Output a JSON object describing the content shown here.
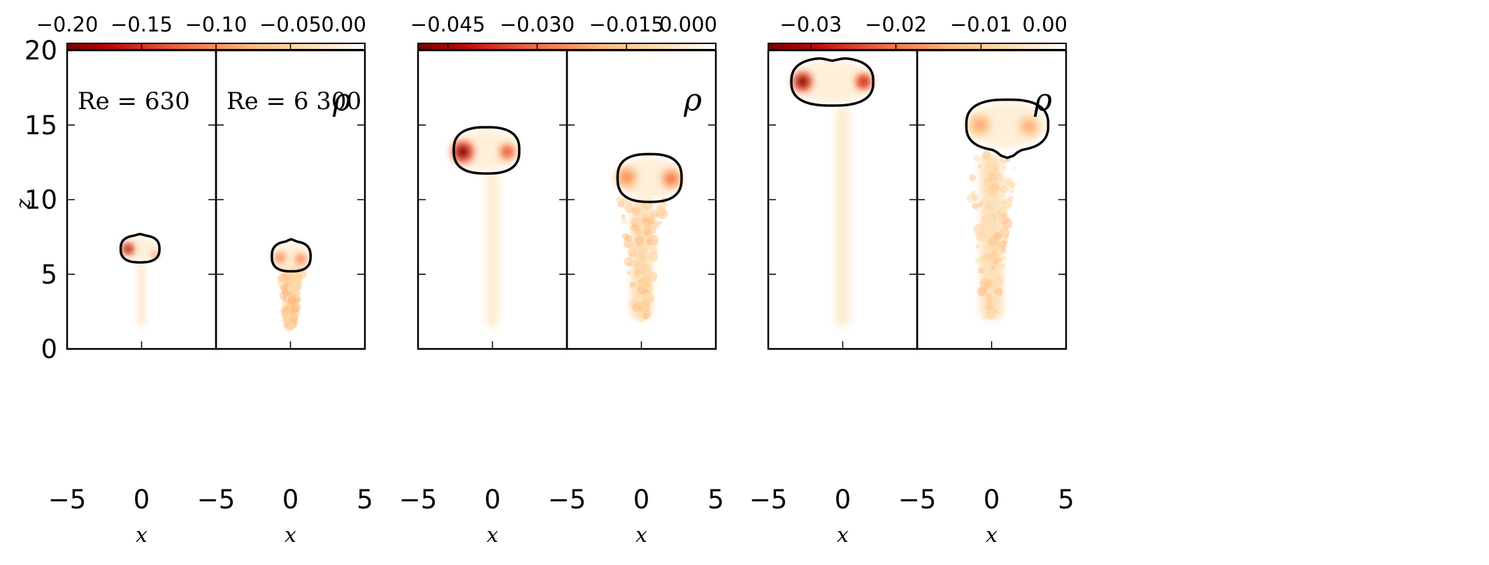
{
  "colormap": {
    "name": "OrRd_r",
    "stops": [
      "#7f0000",
      "#b30000",
      "#d7301f",
      "#ef6548",
      "#fc8d59",
      "#fdbb84",
      "#fdd49e",
      "#fee8c8",
      "#ffffff"
    ]
  },
  "chart_data": [
    {
      "type": "heatmap",
      "group": "t1",
      "variable": "ρ",
      "colorbar": {
        "ticks": [
          "−0.20",
          "−0.15",
          "−0.10",
          "−0.05",
          "0.00"
        ],
        "range": [
          -0.2,
          0.0
        ]
      },
      "panels": [
        {
          "label": "Re = 630",
          "xlabel": "x",
          "ylabel": "z",
          "xlim": [
            -5,
            5
          ],
          "ylim": [
            0,
            20
          ],
          "xticks": [
            "−5",
            "0",
            ""
          ],
          "yticks": [
            "0",
            "5",
            "10",
            "15",
            "20"
          ],
          "contour": {
            "center": [
              -0.1,
              6.7
            ],
            "half_width": 1.3,
            "half_height": 0.9,
            "top_bump": 0.1,
            "bottom_dip": 0.0
          },
          "cores": [
            {
              "x": -0.9,
              "z": 6.7,
              "r": 0.28,
              "value": -0.2
            },
            {
              "x": 0.9,
              "z": 6.3,
              "r": 0.18,
              "value": -0.12
            }
          ],
          "wake": {
            "x": 0.0,
            "z_from": 1.5,
            "z_to": 5.7,
            "width": 0.45,
            "value": -0.04
          },
          "turbulent": false
        },
        {
          "label": "Re = 6 300",
          "symbol": "ρ",
          "xlabel": "x",
          "xlim": [
            -5,
            5
          ],
          "ylim": [
            0,
            20
          ],
          "xticks": [
            "−5",
            "0",
            "5"
          ],
          "contour": {
            "center": [
              0.05,
              6.2
            ],
            "half_width": 1.3,
            "half_height": 1.0,
            "top_bump": 0.15,
            "bottom_dip": 0.0
          },
          "cores": [
            {
              "x": -0.7,
              "z": 6.1,
              "r": 0.28,
              "value": -0.12
            },
            {
              "x": 0.7,
              "z": 6.0,
              "r": 0.28,
              "value": -0.12
            }
          ],
          "wake": {
            "x": 0.0,
            "z_from": 1.5,
            "z_to": 5.5,
            "width": 0.7,
            "value": -0.05
          },
          "turbulent": true
        }
      ]
    },
    {
      "type": "heatmap",
      "group": "t2",
      "variable": "ρ",
      "colorbar": {
        "ticks": [
          "−0.045",
          "−0.030",
          "−0.015",
          "0.000"
        ],
        "range": [
          -0.05,
          0.0
        ]
      },
      "panels": [
        {
          "label": "",
          "xlabel": "x",
          "xlim": [
            -5,
            5
          ],
          "ylim": [
            0,
            20
          ],
          "xticks": [
            "−5",
            "0",
            ""
          ],
          "contour": {
            "center": [
              -0.4,
              13.3
            ],
            "half_width": 2.2,
            "half_height": 1.55,
            "top_bump": 0.0,
            "bottom_dip": 0.0
          },
          "cores": [
            {
              "x": -2.0,
              "z": 13.2,
              "r": 0.5,
              "value": -0.05
            },
            {
              "x": 1.0,
              "z": 13.2,
              "r": 0.38,
              "value": -0.035
            }
          ],
          "wake": {
            "x": 0.0,
            "z_from": 1.5,
            "z_to": 11.8,
            "width": 0.9,
            "value": -0.007
          },
          "turbulent": false
        },
        {
          "label": "",
          "symbol": "ρ",
          "xlabel": "x",
          "xlim": [
            -5,
            5
          ],
          "ylim": [
            0,
            20
          ],
          "xticks": [
            "−5",
            "0",
            "5"
          ],
          "contour": {
            "center": [
              0.55,
              11.45
            ],
            "half_width": 2.15,
            "half_height": 1.6,
            "top_bump": 0.0,
            "bottom_dip": 0.0
          },
          "cores": [
            {
              "x": -1.0,
              "z": 11.5,
              "r": 0.5,
              "value": -0.025
            },
            {
              "x": 2.0,
              "z": 11.4,
              "r": 0.45,
              "value": -0.03
            }
          ],
          "wake": {
            "x": 0.0,
            "z_from": 2.0,
            "z_to": 10.0,
            "width": 1.4,
            "value": -0.012
          },
          "turbulent": true
        }
      ]
    },
    {
      "type": "heatmap",
      "group": "t3",
      "variable": "ρ",
      "colorbar": {
        "ticks": [
          "−0.03",
          "−0.02",
          "−0.01",
          "0.00"
        ],
        "range": [
          -0.035,
          0.0
        ]
      },
      "panels": [
        {
          "label": "",
          "xlabel": "x",
          "xlim": [
            -5,
            5
          ],
          "ylim": [
            0,
            20
          ],
          "xticks": [
            "−5",
            "0",
            ""
          ],
          "contour": {
            "center": [
              -0.7,
              17.9
            ],
            "half_width": 2.75,
            "half_height": 1.6,
            "top_bump": -0.2,
            "bottom_dip": 0.0
          },
          "cores": [
            {
              "x": -2.7,
              "z": 17.9,
              "r": 0.45,
              "value": -0.035
            },
            {
              "x": 1.4,
              "z": 17.9,
              "r": 0.38,
              "value": -0.03
            }
          ],
          "wake": {
            "x": 0.0,
            "z_from": 1.5,
            "z_to": 16.2,
            "width": 1.0,
            "value": -0.005
          },
          "turbulent": false
        },
        {
          "label": "",
          "symbol": "ρ",
          "xlabel": "x",
          "xlim": [
            -5,
            5
          ],
          "ylim": [
            0,
            20
          ],
          "xticks": [
            "−5",
            "0",
            "5"
          ],
          "contour": {
            "center": [
              1.05,
              15.0
            ],
            "half_width": 2.75,
            "half_height": 1.7,
            "top_bump": 0.0,
            "bottom_dip": 0.5
          },
          "cores": [
            {
              "x": -0.8,
              "z": 15.0,
              "r": 0.5,
              "value": -0.015
            },
            {
              "x": 2.5,
              "z": 14.9,
              "r": 0.45,
              "value": -0.015
            }
          ],
          "wake": {
            "x": 0.0,
            "z_from": 2.0,
            "z_to": 13.0,
            "width": 1.5,
            "value": -0.008
          },
          "turbulent": true
        }
      ]
    }
  ]
}
